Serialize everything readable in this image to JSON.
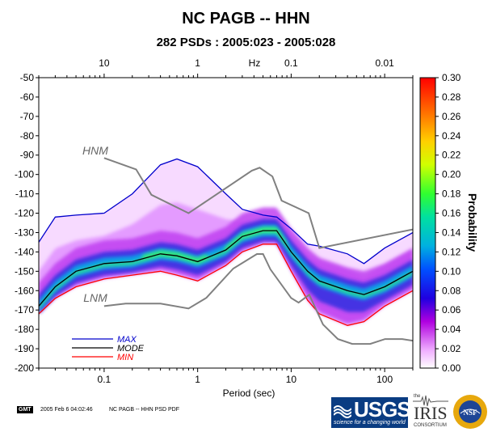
{
  "title": "NC PAGB -- HHN",
  "subtitle": "282 PSDs : 2005:023 - 2005:028",
  "footer": {
    "gmt_label": "GMT",
    "timestamp": "2005 Feb  6 04:02:46",
    "label": "NC PAGB -- HHN PSD PDF",
    "usgs_text": "USGS",
    "usgs_tagline": "science for a changing world",
    "iris_the": "the",
    "iris_text": "IRIS",
    "iris_sub": "CONSORTIUM",
    "nsf_text": "NSF"
  },
  "chart_data": {
    "type": "heatmap",
    "xlabel": "Period (sec)",
    "top_axis_label": "Hz",
    "x_scale": "log",
    "xlim": [
      0.02,
      200
    ],
    "ylim": [
      -200,
      -50
    ],
    "bottom_ticks": [
      {
        "value": 0.1,
        "label": "0.1"
      },
      {
        "value": 1,
        "label": "1"
      },
      {
        "value": 10,
        "label": "10"
      },
      {
        "value": 100,
        "label": "100"
      }
    ],
    "top_ticks": [
      {
        "value": 10,
        "label": "10"
      },
      {
        "value": 1,
        "label": "1"
      },
      {
        "value": 0.1,
        "label": "0.1"
      },
      {
        "value": 0.01,
        "label": "0.01"
      }
    ],
    "y_ticks": [
      -50,
      -60,
      -70,
      -80,
      -90,
      -100,
      -110,
      -120,
      -130,
      -140,
      -150,
      -160,
      -170,
      -180,
      -190,
      -200
    ],
    "colorbar": {
      "label": "Probability",
      "range": [
        0,
        0.3
      ],
      "ticks": [
        "0.00",
        "0.02",
        "0.04",
        "0.06",
        "0.08",
        "0.10",
        "0.12",
        "0.14",
        "0.16",
        "0.18",
        "0.20",
        "0.22",
        "0.24",
        "0.26",
        "0.28",
        "0.30"
      ]
    },
    "legend_position": "bottom-left",
    "series": [
      {
        "name": "MAX",
        "color": "#0000cc",
        "x": [
          0.02,
          0.03,
          0.05,
          0.1,
          0.2,
          0.4,
          0.6,
          1,
          2,
          3,
          5,
          7,
          10,
          15,
          20,
          40,
          60,
          100,
          200
        ],
        "y": [
          -135,
          -122,
          -121,
          -120,
          -110,
          -95,
          -92,
          -96,
          -110,
          -118,
          -121,
          -122,
          -128,
          -136,
          -137,
          -141,
          -146,
          -138,
          -130
        ]
      },
      {
        "name": "MODE",
        "color": "#000000",
        "x": [
          0.02,
          0.03,
          0.05,
          0.1,
          0.2,
          0.4,
          0.6,
          1,
          2,
          3,
          5,
          7,
          10,
          15,
          20,
          40,
          60,
          100,
          200
        ],
        "y": [
          -168,
          -158,
          -150,
          -146,
          -145,
          -141,
          -142,
          -145,
          -139,
          -132,
          -129,
          -129,
          -140,
          -150,
          -155,
          -160,
          -162,
          -158,
          -150
        ]
      },
      {
        "name": "MIN",
        "color": "#ff0000",
        "x": [
          0.02,
          0.03,
          0.05,
          0.1,
          0.2,
          0.4,
          0.6,
          1,
          2,
          3,
          5,
          7,
          10,
          15,
          20,
          40,
          60,
          100,
          200
        ],
        "y": [
          -172,
          -164,
          -158,
          -154,
          -152,
          -150,
          -152,
          -155,
          -147,
          -140,
          -136,
          -136,
          -150,
          -165,
          -172,
          -178,
          -176,
          -168,
          -160
        ]
      },
      {
        "name": "HNM",
        "color": "#808080",
        "x": [
          0.1,
          0.22,
          0.32,
          0.8,
          3.8,
          4.6,
          6.3,
          7.9,
          15.4,
          20,
          354.8
        ],
        "y": [
          -91.5,
          -97.4,
          -110.5,
          -120,
          -98,
          -96.5,
          -101,
          -113.5,
          -120,
          -138,
          -126
        ]
      },
      {
        "name": "LNM",
        "color": "#808080",
        "x": [
          0.1,
          0.17,
          0.4,
          0.8,
          1.24,
          2.4,
          4.3,
          5,
          6,
          10,
          12,
          15.6,
          21.9,
          31.6,
          45,
          70,
          101,
          154,
          328
        ],
        "y": [
          -168,
          -166.7,
          -166.7,
          -169.2,
          -163.7,
          -148.6,
          -141.1,
          -141.1,
          -149,
          -163.8,
          -166.2,
          -162.1,
          -177.5,
          -185,
          -187.5,
          -187.5,
          -185,
          -185,
          -187.5
        ]
      }
    ],
    "legend": [
      "MAX",
      "MODE",
      "MIN"
    ],
    "annotations": [
      "HNM",
      "LNM"
    ]
  }
}
